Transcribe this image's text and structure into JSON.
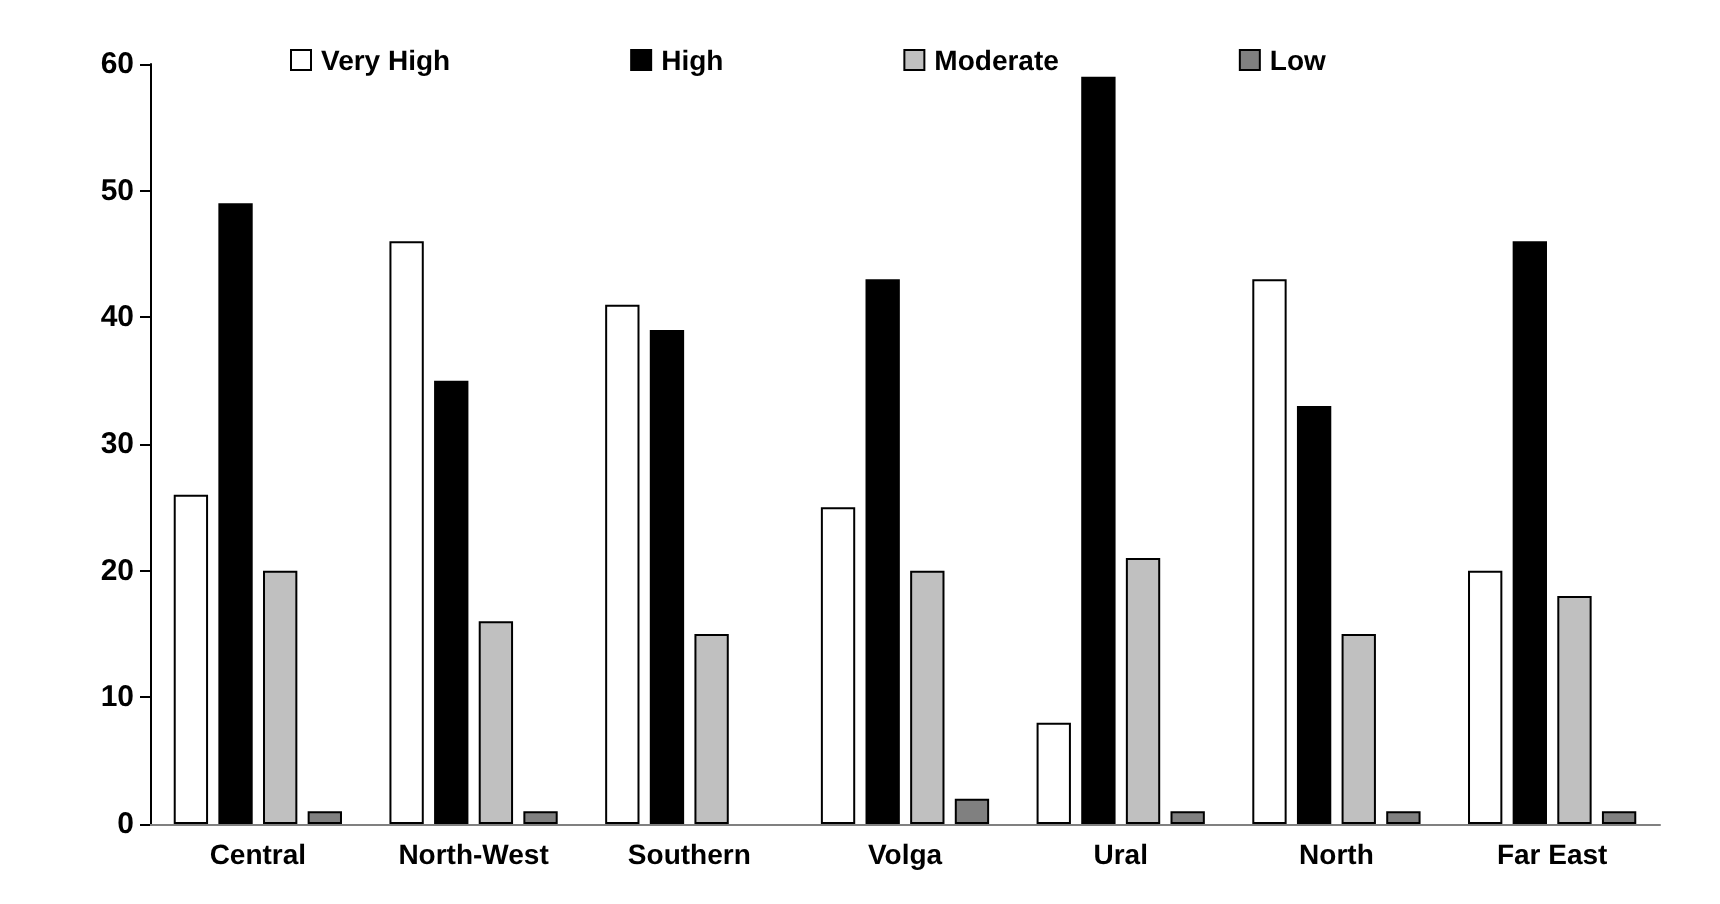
{
  "chart_data": {
    "type": "bar",
    "categories": [
      "Central",
      "North-West",
      "Southern",
      "Volga",
      "Ural",
      "North",
      "Far East"
    ],
    "series": [
      {
        "name": "Very High",
        "color": "#ffffff",
        "values": [
          26,
          46,
          41,
          25,
          8,
          43,
          20
        ]
      },
      {
        "name": "High",
        "color": "#000000",
        "values": [
          49,
          35,
          39,
          43,
          59,
          33,
          46
        ]
      },
      {
        "name": "Moderate",
        "color": "#c0c0c0",
        "values": [
          20,
          16,
          15,
          20,
          21,
          15,
          18
        ]
      },
      {
        "name": "Low",
        "color": "#808080",
        "values": [
          1,
          1,
          0,
          2,
          1,
          1,
          1
        ]
      }
    ],
    "ylim": [
      0,
      60
    ],
    "yticks": [
      0,
      10,
      20,
      30,
      40,
      50,
      60
    ],
    "grid": false,
    "legend": "top"
  }
}
